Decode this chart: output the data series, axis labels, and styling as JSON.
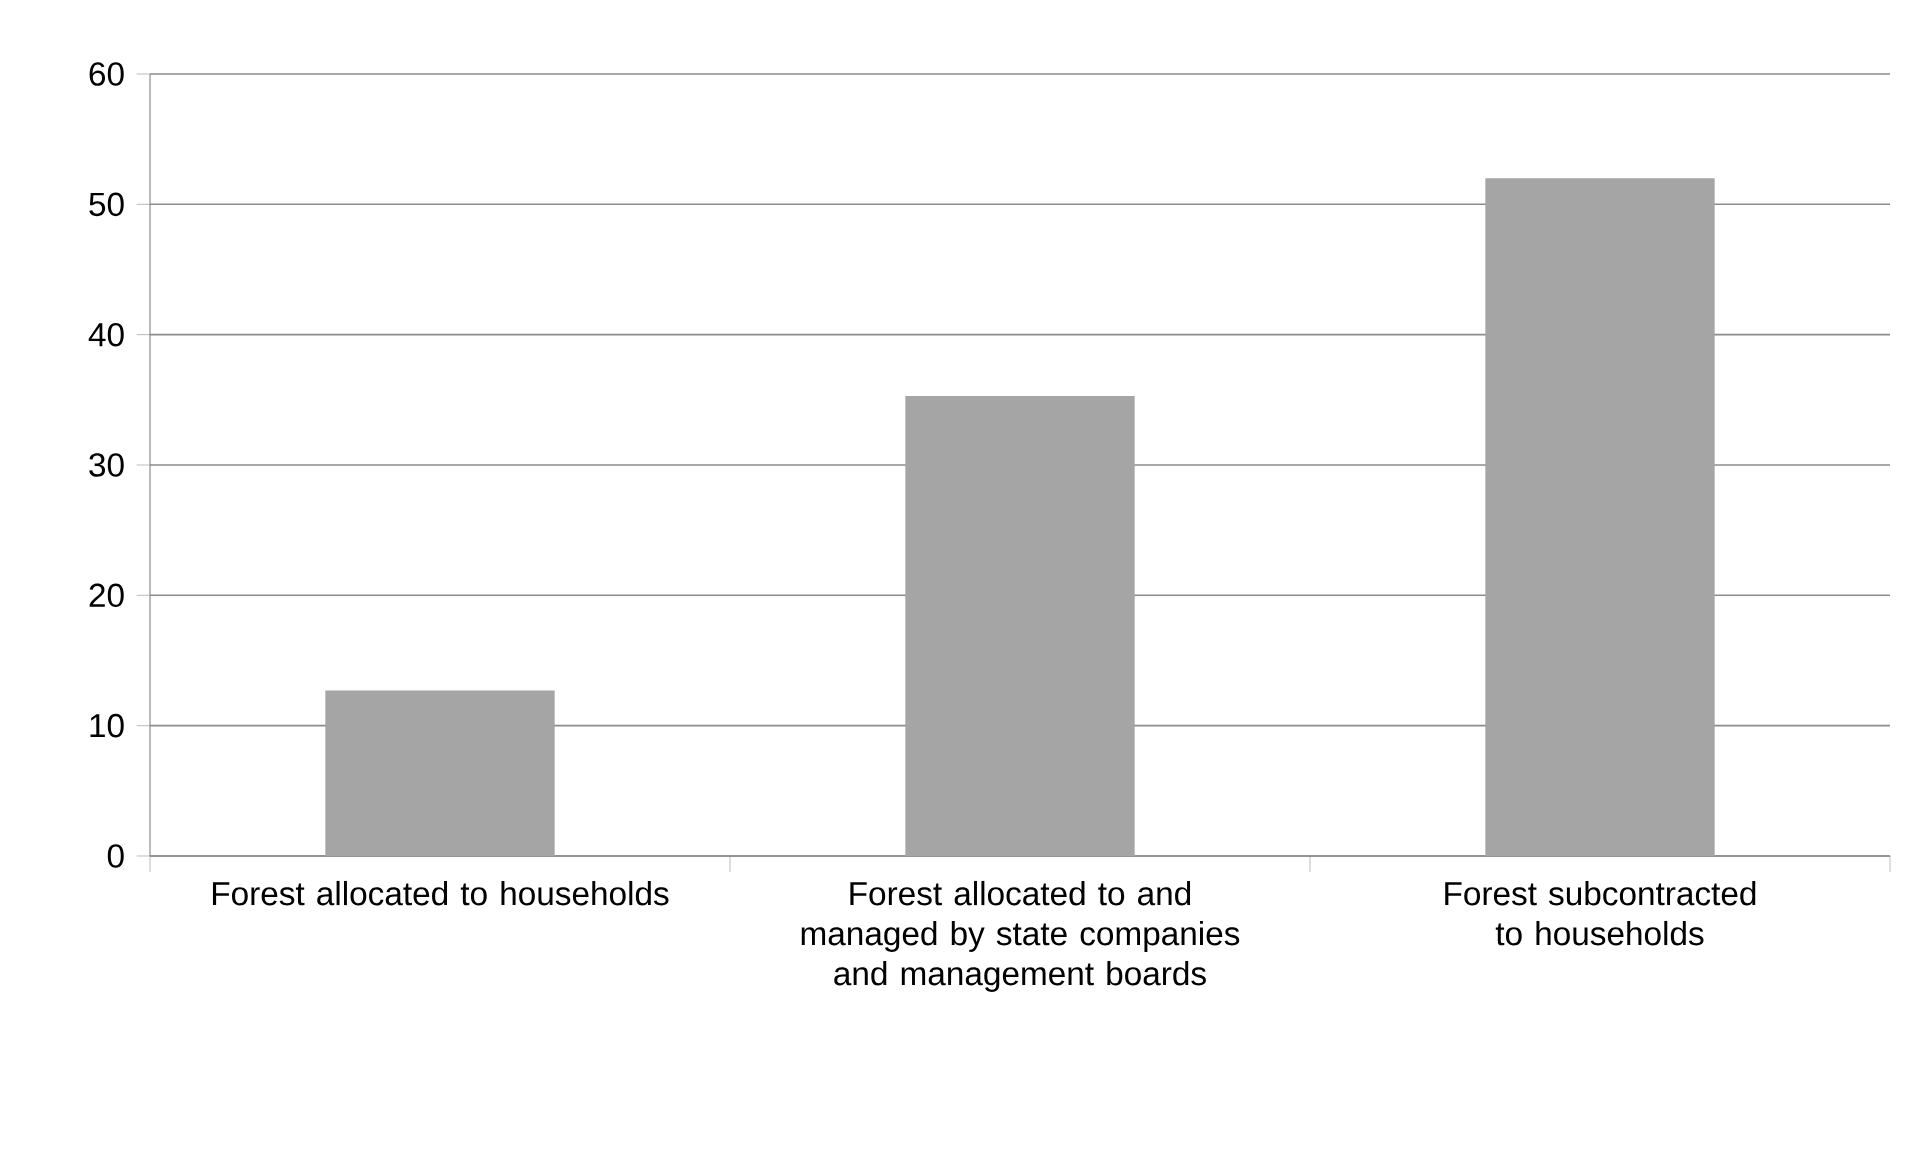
{
  "chart_data": {
    "type": "bar",
    "categories": [
      "Forest allocated to households",
      "Forest allocated to and managed by state companies and management boards",
      "Forest subcontracted to households"
    ],
    "values": [
      12.7,
      35.3,
      52.0
    ],
    "color": "#a5a5a5",
    "ylim": [
      0,
      60
    ],
    "yticks": [
      0,
      10,
      20,
      30,
      40,
      50,
      60
    ],
    "grid": "y"
  }
}
